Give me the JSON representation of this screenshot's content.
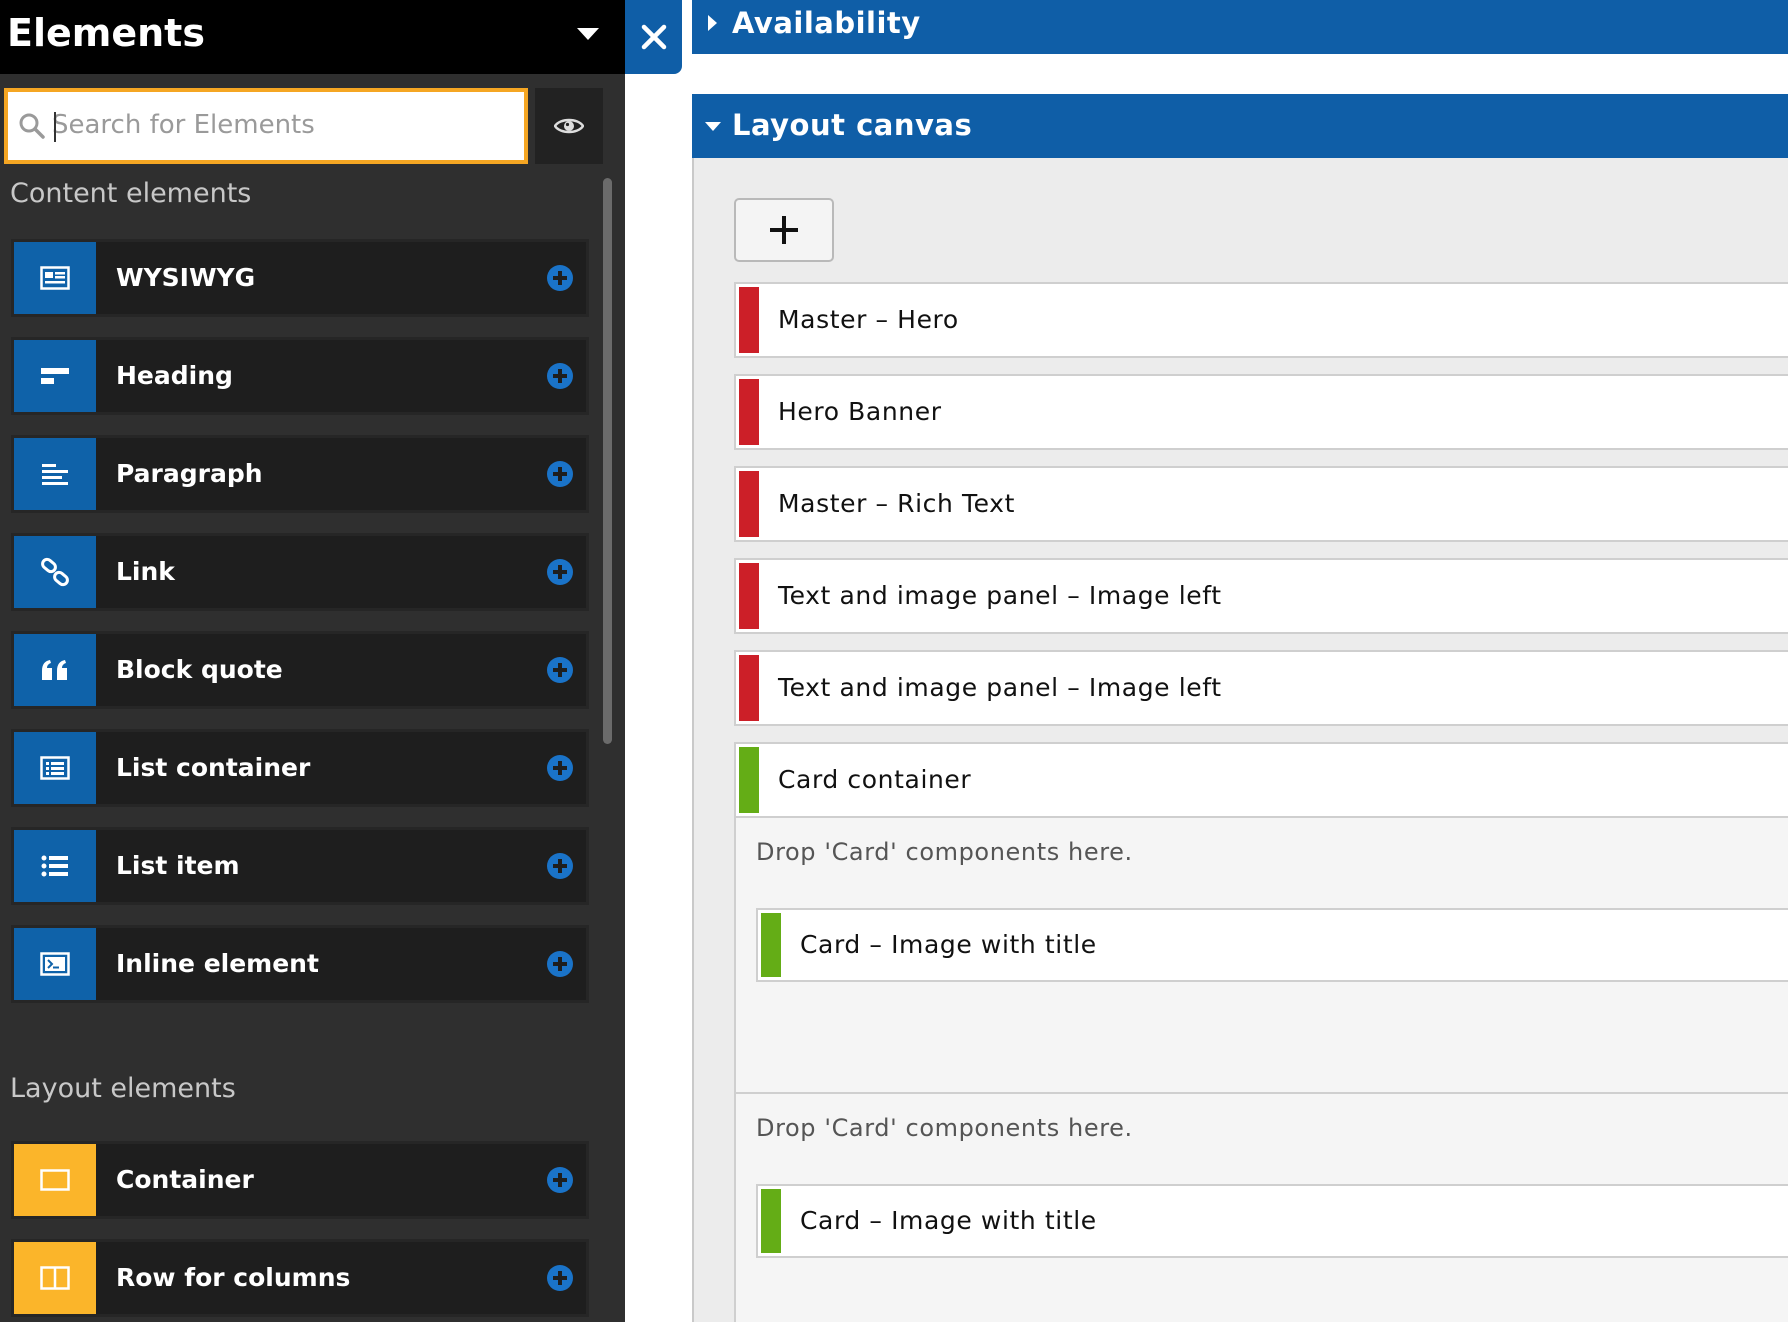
{
  "sidebar": {
    "title": "Elements",
    "search": {
      "placeholder": "Search for Elements",
      "value": ""
    },
    "content_section_label": "Content elements",
    "content_items": [
      {
        "label": "WYSIWYG",
        "icon": "wysiwyg-icon"
      },
      {
        "label": "Heading",
        "icon": "heading-icon"
      },
      {
        "label": "Paragraph",
        "icon": "paragraph-icon"
      },
      {
        "label": "Link",
        "icon": "link-icon"
      },
      {
        "label": "Block quote",
        "icon": "quote-icon"
      },
      {
        "label": "List container",
        "icon": "list-container-icon"
      },
      {
        "label": "List item",
        "icon": "list-item-icon"
      },
      {
        "label": "Inline element",
        "icon": "inline-element-icon"
      }
    ],
    "layout_section_label": "Layout elements",
    "layout_items": [
      {
        "label": "Container",
        "icon": "container-icon"
      },
      {
        "label": "Row for columns",
        "icon": "columns-icon"
      }
    ]
  },
  "main": {
    "availability_title": "Availability",
    "layout_canvas_title": "Layout canvas",
    "components": [
      {
        "label": "Master – Hero",
        "status": "red"
      },
      {
        "label": "Hero Banner",
        "status": "red"
      },
      {
        "label": "Master – Rich Text",
        "status": "red"
      },
      {
        "label": "Text and image panel – Image left",
        "status": "red"
      },
      {
        "label": "Text and image panel – Image left",
        "status": "red"
      },
      {
        "label": "Card container",
        "status": "green"
      }
    ],
    "drop_zones": [
      {
        "text": "Drop 'Card' components here.",
        "card_label": "Card – Image with title"
      },
      {
        "text": "Drop 'Card' components here.",
        "card_label": "Card – Image with title"
      }
    ]
  },
  "colors": {
    "sidebar_bg": "#2f2f2f",
    "header_bg": "#000000",
    "accent_blue": "#0f5ea7",
    "search_focus": "#f5a623",
    "layout_orange": "#fbb52a",
    "status_red": "#cc1f28",
    "status_green": "#64ad16"
  }
}
